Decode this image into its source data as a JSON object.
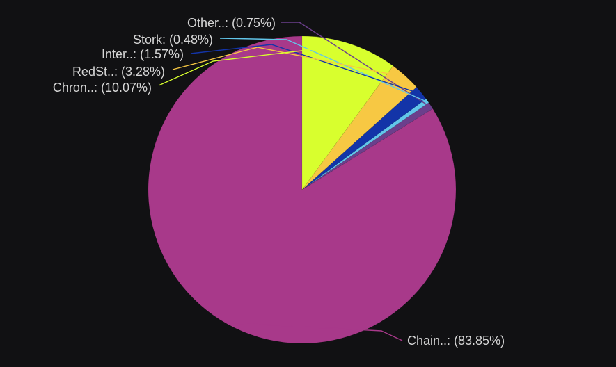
{
  "chart_data": {
    "type": "pie",
    "start_angle_deg": 0,
    "direction": "counterclockwise",
    "slices": [
      {
        "label": "Chain..",
        "display": "Chain..: (83.85%)",
        "value": 83.85,
        "color": "#a8398a"
      },
      {
        "label": "Other..",
        "display": "Other..: (0.75%)",
        "value": 0.75,
        "color": "#6b3f8c"
      },
      {
        "label": "Stork",
        "display": "Stork: (0.48%)",
        "value": 0.48,
        "color": "#62c6ea"
      },
      {
        "label": "Inter..",
        "display": "Inter..: (1.57%)",
        "value": 1.57,
        "color": "#1334a8"
      },
      {
        "label": "RedSt..",
        "display": "RedSt..: (3.28%)",
        "value": 3.28,
        "color": "#f7c843"
      },
      {
        "label": "Chron..",
        "display": "Chron..: (10.07%)",
        "value": 10.07,
        "color": "#d8ff2e"
      }
    ]
  },
  "colors": {
    "background": "#111113",
    "label_text": "#d6d6d6"
  }
}
